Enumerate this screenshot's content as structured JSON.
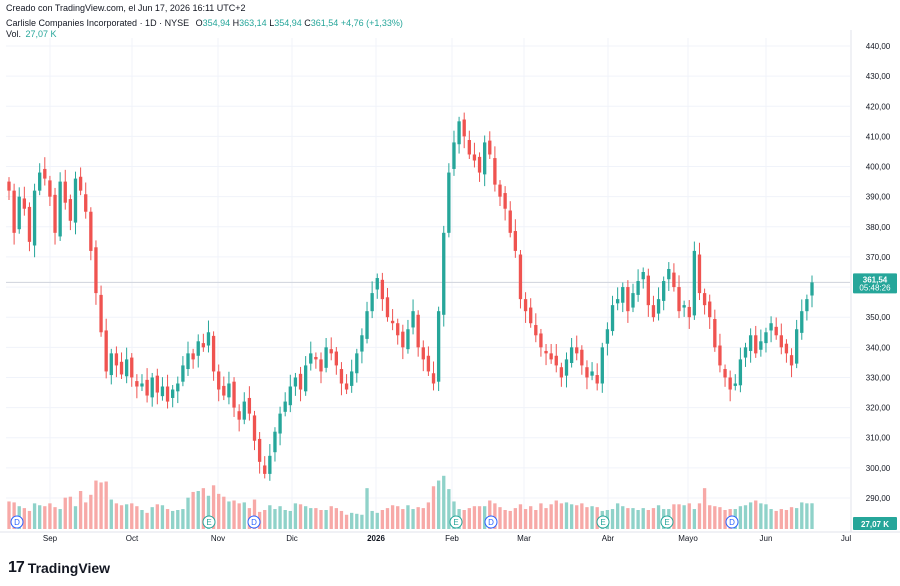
{
  "header": {
    "created_line": "Creado con TradingView.com, el Jun 17, 2026 16:11 UTC+2",
    "symbol_label": "Carlisle Companies Incorporated · 1D · NYSE",
    "o_key": "O",
    "o_val": "354,94",
    "h_key": "H",
    "h_val": "363,14",
    "l_key": "L",
    "l_val": "354,94",
    "c_key": "C",
    "c_val": "361,54",
    "change": "+4,76 (+1,33%)",
    "vol_label": "Vol.",
    "vol_val": "27,07 K"
  },
  "brand": {
    "name": "TradingView"
  },
  "colors": {
    "up": "#26a69a",
    "down": "#ef5350",
    "vol_up": "#8fd2c9",
    "vol_down": "#f7a9a7",
    "grid": "#f0f3fa",
    "text": "#131722"
  },
  "chart_data": {
    "type": "candlestick",
    "y_axis": {
      "min": 280,
      "max": 440,
      "ticks": [
        "440,00",
        "430,00",
        "420,00",
        "410,00",
        "400,00",
        "390,00",
        "380,00",
        "370,00",
        "360,00",
        "350,00",
        "340,00",
        "330,00",
        "320,00",
        "310,00",
        "300,00",
        "290,00"
      ]
    },
    "x_axis": {
      "labels": [
        "Sep",
        "Oct",
        "Nov",
        "Dic",
        "2026",
        "Feb",
        "Mar",
        "Abr",
        "Mayo",
        "Jun",
        "Jul"
      ]
    },
    "last_price": "361,54",
    "countdown": "05:48:26",
    "volume_badge": "27,07 K",
    "event_markers": [
      {
        "label": "D",
        "month_index": 0
      },
      {
        "label": "E",
        "month_index": 1.9
      },
      {
        "label": "D",
        "month_index": 2.45
      },
      {
        "label": "E",
        "month_index": 5.05
      },
      {
        "label": "D",
        "month_index": 5.45
      },
      {
        "label": "E",
        "month_index": 7.65
      },
      {
        "label": "E",
        "month_index": 8.25
      },
      {
        "label": "D",
        "month_index": 9.35
      }
    ],
    "closes": [
      392,
      378,
      390,
      386,
      375,
      392,
      398,
      396,
      390,
      378,
      395,
      388,
      382,
      396,
      392,
      385,
      372,
      358,
      345,
      332,
      338,
      334,
      331,
      336,
      330,
      327,
      328,
      324,
      330,
      325,
      327,
      322,
      326,
      328,
      334,
      338,
      336,
      342,
      340,
      345,
      332,
      326,
      324,
      328,
      320,
      316,
      322,
      318,
      309,
      302,
      298,
      304,
      312,
      318,
      322,
      327,
      330,
      326,
      334,
      338,
      336,
      332,
      340,
      338,
      334,
      328,
      326,
      332,
      338,
      344,
      352,
      358,
      363,
      356,
      350,
      348,
      344,
      340,
      346,
      352,
      340,
      336,
      332,
      328,
      352,
      378,
      398,
      408,
      415,
      410,
      404,
      402,
      398,
      408,
      404,
      394,
      390,
      386,
      378,
      372,
      356,
      352,
      348,
      344,
      340,
      338,
      336,
      334,
      330,
      336,
      340,
      338,
      334,
      330,
      332,
      328,
      340,
      346,
      354,
      356,
      360,
      352,
      358,
      362,
      365,
      354,
      350,
      356,
      362,
      366,
      360,
      352,
      354,
      350,
      372,
      358,
      354,
      350,
      340,
      334,
      330,
      326,
      328,
      336,
      340,
      344,
      338,
      342,
      345,
      348,
      344,
      340,
      338,
      334,
      346,
      352,
      356,
      361.54
    ],
    "volumes_k": [
      29,
      28,
      24,
      22,
      19,
      27,
      25,
      24,
      27,
      23,
      21,
      33,
      34,
      24,
      40,
      28,
      36,
      51,
      49,
      50,
      31,
      27,
      25,
      26,
      27,
      24,
      20,
      17,
      23,
      26,
      25,
      21,
      19,
      20,
      21,
      33,
      39,
      40,
      43,
      35,
      46,
      37,
      34,
      29,
      30,
      27,
      28,
      22,
      31,
      18,
      20,
      25,
      21,
      24,
      20,
      19,
      27,
      26,
      24,
      22,
      22,
      20,
      20,
      24,
      22,
      19,
      15,
      17,
      16,
      15,
      43,
      19,
      17,
      20,
      22,
      25,
      24,
      21,
      25,
      21,
      23,
      22,
      28,
      45,
      51,
      56,
      42,
      29,
      21,
      20,
      22,
      24,
      24,
      24,
      30,
      27,
      23,
      20,
      19,
      22,
      26,
      21,
      24,
      20,
      27,
      22,
      26,
      30,
      27,
      28,
      26,
      25,
      27,
      23,
      24,
      23,
      19,
      20,
      21,
      27,
      24,
      22,
      22,
      20,
      22,
      20,
      22,
      25,
      21,
      21,
      26,
      26,
      25,
      27,
      21,
      27,
      43,
      25,
      24,
      23,
      20,
      21,
      21,
      24,
      25,
      28,
      30,
      27,
      26,
      21,
      19,
      21,
      20,
      23,
      22,
      28,
      27,
      27.07
    ]
  }
}
